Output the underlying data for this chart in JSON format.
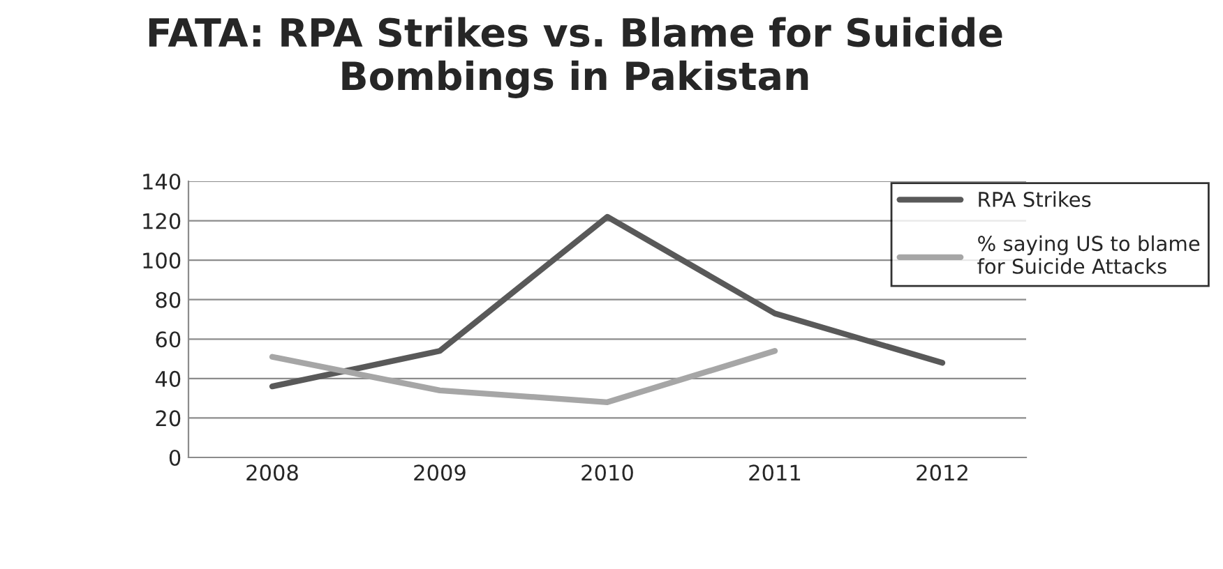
{
  "chart_data": {
    "type": "line",
    "title": "FATA: RPA Strikes vs. Blame for Suicide Bombings in Pakistan",
    "categories": [
      "2008",
      "2009",
      "2010",
      "2011",
      "2012"
    ],
    "series": [
      {
        "name": "RPA Strikes",
        "color": "#595959",
        "values": [
          36,
          54,
          122,
          73,
          48
        ]
      },
      {
        "name": "% saying US to blame\nfor Suicide Attacks",
        "color": "#a6a6a6",
        "values": [
          51,
          34,
          28,
          54,
          null
        ]
      }
    ],
    "ylim": [
      0,
      140
    ],
    "yticks": [
      0,
      20,
      40,
      60,
      80,
      100,
      120,
      140
    ],
    "grid": "y",
    "legend": "top right",
    "marker": "none",
    "line_style": "solid"
  }
}
